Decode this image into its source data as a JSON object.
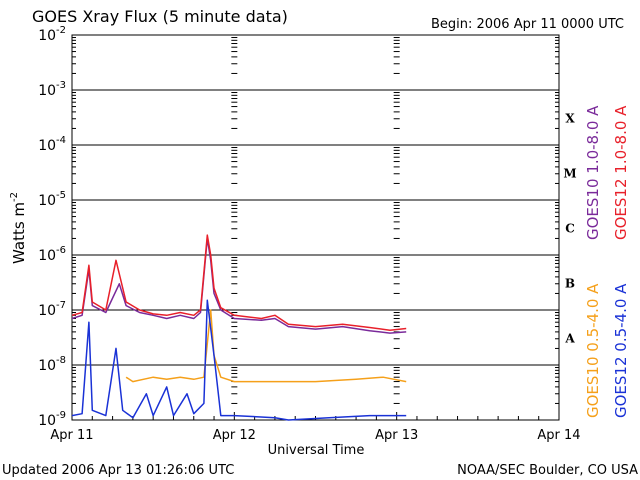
{
  "header": {
    "title": "GOES Xray Flux (5 minute data)",
    "begin": "Begin:  2006 Apr 11 0000 UTC"
  },
  "footer": {
    "updated": "Updated 2006 Apr 13 01:26:06 UTC",
    "credit": "NOAA/SEC Boulder, CO USA"
  },
  "colors": {
    "goes10_long": "#7a2a9a",
    "goes12_long": "#e8202a",
    "goes10_short": "#f5a01a",
    "goes12_short": "#1a32d6",
    "frame": "#000000",
    "background": "#ffffff"
  },
  "chart_data": {
    "type": "line",
    "title": "GOES Xray Flux (5 minute data)",
    "xlabel": "Universal Time",
    "ylabel": "Watts m",
    "ylabel_sup": "-2",
    "yscale": "log",
    "ylim": [
      1e-09,
      0.01
    ],
    "xlim": [
      "2006-04-11 00:00",
      "2006-04-14 00:00"
    ],
    "x_ticks": [
      "Apr 11",
      "Apr 12",
      "Apr 13",
      "Apr 14"
    ],
    "y_ticks": [
      {
        "value": 0.01,
        "base": "10",
        "exp": "-2"
      },
      {
        "value": 0.001,
        "base": "10",
        "exp": "-3"
      },
      {
        "value": 0.0001,
        "base": "10",
        "exp": "-4"
      },
      {
        "value": 1e-05,
        "base": "10",
        "exp": "-5"
      },
      {
        "value": 1e-06,
        "base": "10",
        "exp": "-6"
      },
      {
        "value": 1e-07,
        "base": "10",
        "exp": "-7"
      },
      {
        "value": 1e-08,
        "base": "10",
        "exp": "-8"
      },
      {
        "value": 1e-09,
        "base": "10",
        "exp": "-9"
      }
    ],
    "flare_classes": [
      {
        "label": "X",
        "low": 0.0001,
        "high": 0.001
      },
      {
        "label": "M",
        "low": 1e-05,
        "high": 0.0001
      },
      {
        "label": "C",
        "low": 1e-06,
        "high": 1e-05
      },
      {
        "label": "B",
        "low": 1e-07,
        "high": 1e-06
      },
      {
        "label": "A",
        "low": 1e-08,
        "high": 1e-07
      }
    ],
    "legend_upper": [
      "GOES10 1.0-8.0 A",
      "GOES12 1.0-8.0 A"
    ],
    "legend_lower": [
      "GOES10 0.5-4.0 A",
      "GOES12 0.5-4.0 A"
    ],
    "grid": true,
    "series": [
      {
        "name": "GOES10 1.0-8.0 A",
        "color": "#7a2a9a",
        "points": [
          [
            "2006-04-11 00:00",
            7e-08
          ],
          [
            "2006-04-11 01:30",
            8e-08
          ],
          [
            "2006-04-11 02:30",
            5.5e-07
          ],
          [
            "2006-04-11 03:00",
            1.2e-07
          ],
          [
            "2006-04-11 05:00",
            9e-08
          ],
          [
            "2006-04-11 07:00",
            3e-07
          ],
          [
            "2006-04-11 08:00",
            1.2e-07
          ],
          [
            "2006-04-11 10:00",
            9e-08
          ],
          [
            "2006-04-11 12:00",
            8e-08
          ],
          [
            "2006-04-11 14:00",
            7e-08
          ],
          [
            "2006-04-11 16:00",
            8e-08
          ],
          [
            "2006-04-11 18:00",
            7e-08
          ],
          [
            "2006-04-11 19:00",
            9e-08
          ],
          [
            "2006-04-11 20:00",
            2e-06
          ],
          [
            "2006-04-11 20:30",
            8e-07
          ],
          [
            "2006-04-11 21:00",
            2e-07
          ],
          [
            "2006-04-11 22:00",
            1e-07
          ],
          [
            "2006-04-12 00:00",
            7e-08
          ],
          [
            "2006-04-12 04:00",
            6.5e-08
          ],
          [
            "2006-04-12 06:00",
            7e-08
          ],
          [
            "2006-04-12 08:00",
            5e-08
          ],
          [
            "2006-04-12 12:00",
            4.5e-08
          ],
          [
            "2006-04-12 16:00",
            5e-08
          ],
          [
            "2006-04-12 20:00",
            4.2e-08
          ],
          [
            "2006-04-12 23:00",
            3.8e-08
          ],
          [
            "2006-04-13 01:25",
            4e-08
          ]
        ]
      },
      {
        "name": "GOES12 1.0-8.0 A",
        "color": "#e8202a",
        "points": [
          [
            "2006-04-11 00:00",
            8e-08
          ],
          [
            "2006-04-11 01:30",
            9e-08
          ],
          [
            "2006-04-11 02:30",
            6.5e-07
          ],
          [
            "2006-04-11 03:00",
            1.4e-07
          ],
          [
            "2006-04-11 05:00",
            1e-07
          ],
          [
            "2006-04-11 06:30",
            8e-07
          ],
          [
            "2006-04-11 08:00",
            1.4e-07
          ],
          [
            "2006-04-11 10:00",
            1e-07
          ],
          [
            "2006-04-11 12:00",
            8.5e-08
          ],
          [
            "2006-04-11 14:00",
            8e-08
          ],
          [
            "2006-04-11 16:00",
            9e-08
          ],
          [
            "2006-04-11 18:00",
            8e-08
          ],
          [
            "2006-04-11 19:00",
            1e-07
          ],
          [
            "2006-04-11 20:00",
            2.3e-06
          ],
          [
            "2006-04-11 20:30",
            1e-06
          ],
          [
            "2006-04-11 21:00",
            2.5e-07
          ],
          [
            "2006-04-11 22:00",
            1.1e-07
          ],
          [
            "2006-04-12 00:00",
            8e-08
          ],
          [
            "2006-04-12 04:00",
            7e-08
          ],
          [
            "2006-04-12 06:00",
            8e-08
          ],
          [
            "2006-04-12 08:00",
            5.5e-08
          ],
          [
            "2006-04-12 12:00",
            5e-08
          ],
          [
            "2006-04-12 16:00",
            5.5e-08
          ],
          [
            "2006-04-12 20:00",
            4.8e-08
          ],
          [
            "2006-04-12 23:00",
            4.3e-08
          ],
          [
            "2006-04-13 01:25",
            4.6e-08
          ]
        ]
      },
      {
        "name": "GOES10 0.5-4.0 A",
        "color": "#f5a01a",
        "points": [
          [
            "2006-04-11 08:00",
            6e-09
          ],
          [
            "2006-04-11 09:00",
            5e-09
          ],
          [
            "2006-04-11 12:00",
            6e-09
          ],
          [
            "2006-04-11 14:00",
            5.5e-09
          ],
          [
            "2006-04-11 16:00",
            6e-09
          ],
          [
            "2006-04-11 18:00",
            5.5e-09
          ],
          [
            "2006-04-11 19:30",
            6e-09
          ],
          [
            "2006-04-11 20:30",
            1e-07
          ],
          [
            "2006-04-11 21:00",
            1.5e-08
          ],
          [
            "2006-04-11 22:00",
            6e-09
          ],
          [
            "2006-04-12 00:00",
            5e-09
          ],
          [
            "2006-04-12 06:00",
            5e-09
          ],
          [
            "2006-04-12 12:00",
            5e-09
          ],
          [
            "2006-04-12 18:00",
            5.5e-09
          ],
          [
            "2006-04-12 22:00",
            6e-09
          ],
          [
            "2006-04-13 01:25",
            5e-09
          ]
        ]
      },
      {
        "name": "GOES12 0.5-4.0 A",
        "color": "#1a32d6",
        "points": [
          [
            "2006-04-11 00:00",
            1.2e-09
          ],
          [
            "2006-04-11 01:30",
            1.3e-09
          ],
          [
            "2006-04-11 02:30",
            6e-08
          ],
          [
            "2006-04-11 03:00",
            1.5e-09
          ],
          [
            "2006-04-11 05:00",
            1.2e-09
          ],
          [
            "2006-04-11 06:30",
            2e-08
          ],
          [
            "2006-04-11 07:30",
            1.5e-09
          ],
          [
            "2006-04-11 09:00",
            1.1e-09
          ],
          [
            "2006-04-11 11:00",
            3e-09
          ],
          [
            "2006-04-11 12:00",
            1.2e-09
          ],
          [
            "2006-04-11 14:00",
            4e-09
          ],
          [
            "2006-04-11 15:00",
            1.2e-09
          ],
          [
            "2006-04-11 17:00",
            3e-09
          ],
          [
            "2006-04-11 18:00",
            1.3e-09
          ],
          [
            "2006-04-11 19:30",
            2e-09
          ],
          [
            "2006-04-11 20:00",
            1.5e-07
          ],
          [
            "2006-04-11 21:00",
            1.5e-08
          ],
          [
            "2006-04-11 22:00",
            1.2e-09
          ],
          [
            "2006-04-12 00:00",
            1.2e-09
          ],
          [
            "2006-04-12 06:00",
            1.1e-09
          ],
          [
            "2006-04-12 08:00",
            1e-09
          ],
          [
            "2006-04-12 14:00",
            1.1e-09
          ],
          [
            "2006-04-12 20:00",
            1.2e-09
          ],
          [
            "2006-04-13 01:25",
            1.2e-09
          ]
        ]
      }
    ]
  }
}
